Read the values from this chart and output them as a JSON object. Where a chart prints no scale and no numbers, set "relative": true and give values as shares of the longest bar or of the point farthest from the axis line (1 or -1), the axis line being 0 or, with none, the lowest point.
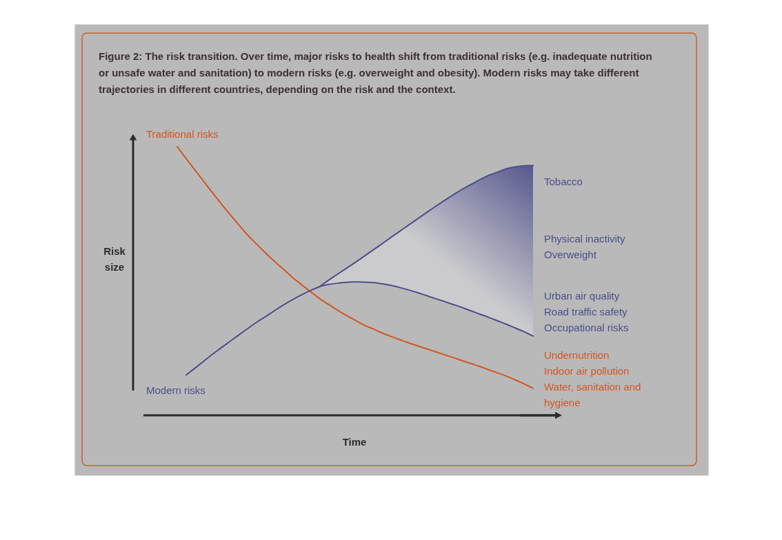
{
  "chart_data": {
    "type": "line",
    "relative": true,
    "title": "Figure 2: The risk transition. Over time, major risks to health shift from traditional risks (e.g. inadequate nutrition or unsafe water and sanitation) to modern risks (e.g. overweight and obesity). Modern risks may take different trajectories in different countries, depending on the risk and the context.",
    "xlabel": "Time",
    "ylabel": "Risk size",
    "categories": [
      null,
      null,
      null,
      null,
      null,
      null,
      null,
      null,
      null,
      null,
      null,
      null,
      null,
      null,
      null,
      null,
      null,
      null,
      null,
      null,
      null,
      null,
      null,
      null,
      null,
      null,
      null,
      null,
      null,
      null,
      null,
      null,
      null,
      null,
      null,
      null,
      null,
      null,
      null,
      null,
      null
    ],
    "series": [
      {
        "name": "Traditional risks",
        "color": "#d2561e",
        "values": [
          1,
          0.956,
          0.913,
          0.87,
          0.827,
          0.785,
          0.745,
          0.706,
          0.668,
          0.635,
          0.602,
          0.571,
          0.542,
          0.512,
          0.486,
          0.46,
          0.435,
          0.413,
          0.392,
          0.372,
          0.354,
          0.336,
          0.322,
          0.307,
          0.294,
          0.282,
          0.27,
          0.259,
          0.248,
          0.237,
          0.226,
          0.215,
          0.204,
          0.193,
          0.182,
          0.17,
          0.158,
          0.146,
          0.132,
          0.117,
          0.101
        ]
      },
      {
        "name": "Modern risks",
        "color": "#4d4d8b",
        "values": [
          null,
          0.15,
          0.176,
          0.202,
          0.228,
          0.253,
          0.277,
          0.301,
          0.325,
          0.348,
          0.369,
          0.391,
          0.412,
          0.431,
          0.449,
          0.465,
          0.479,
          0.487,
          0.492,
          0.495,
          0.497,
          0.496,
          0.494,
          0.49,
          0.484,
          0.476,
          0.467,
          0.457,
          0.446,
          0.435,
          0.424,
          0.413,
          0.402,
          0.389,
          0.377,
          0.365,
          0.352,
          0.339,
          0.325,
          0.311,
          0.295
        ]
      },
      {
        "color": "#4d4d8b",
        "values": [
          null,
          null,
          null,
          null,
          null,
          null,
          null,
          null,
          null,
          null,
          null,
          null,
          null,
          null,
          null,
          null,
          0.479,
          0.503,
          0.525,
          0.547,
          0.569,
          0.592,
          0.615,
          0.638,
          0.662,
          0.685,
          0.708,
          0.731,
          0.754,
          0.777,
          0.799,
          0.82,
          0.841,
          0.859,
          0.877,
          0.893,
          0.905,
          0.918,
          0.925,
          0.929,
          0.93
        ],
        "lower": [
          null,
          null,
          null,
          null,
          null,
          null,
          null,
          null,
          null,
          null,
          null,
          null,
          null,
          null,
          null,
          null,
          0.479,
          0.487,
          0.492,
          0.495,
          0.497,
          0.496,
          0.494,
          0.49,
          0.484,
          0.476,
          0.467,
          0.457,
          0.446,
          0.435,
          0.424,
          0.413,
          0.402,
          0.389,
          0.377,
          0.365,
          0.352,
          0.339,
          0.325,
          0.311,
          0.295
        ],
        "upper": [
          null,
          null,
          null,
          null,
          null,
          null,
          null,
          null,
          null,
          null,
          null,
          null,
          null,
          null,
          null,
          null,
          0.479,
          0.503,
          0.525,
          0.547,
          0.569,
          0.592,
          0.615,
          0.638,
          0.662,
          0.685,
          0.708,
          0.731,
          0.754,
          0.777,
          0.799,
          0.82,
          0.841,
          0.859,
          0.877,
          0.893,
          0.905,
          0.918,
          0.925,
          0.929,
          0.93
        ]
      }
    ],
    "annotations": [
      "Tobacco",
      "Physical inactivity\nOverweight",
      "Urban air quality\nRoad traffic safety\nOccupational risks",
      "Undernutrition\nIndoor air pollution\nWater, sanitation and hygiene"
    ]
  }
}
